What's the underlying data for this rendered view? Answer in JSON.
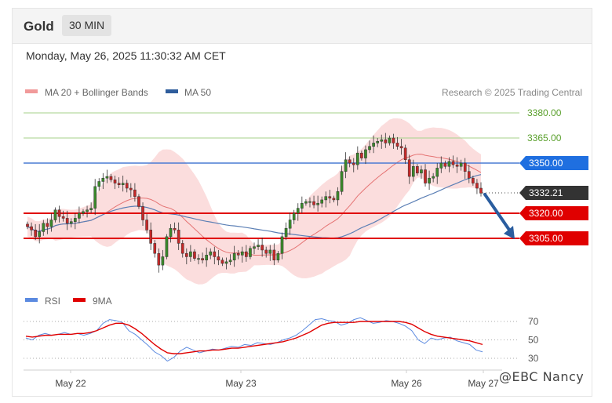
{
  "header": {
    "instrument": "Gold",
    "timeframe": "30 MIN"
  },
  "timestamp": "Monday, May 26, 2025 11:30:32 AM CET",
  "legend": {
    "ma20": "MA 20 + Bollinger Bands",
    "ma50": "MA 50",
    "credit": "Research © 2025 Trading Central"
  },
  "rsi_legend": {
    "rsi": "RSI",
    "ma9": "9MA"
  },
  "watermark": "@EBC Nancy",
  "colors": {
    "bull": "#3a8a2a",
    "bear": "#c62828",
    "band": "#f7b3b3",
    "ma20": "#e57373",
    "ma50": "#5b7fb5",
    "resistance": "#a6d28a",
    "support": "#e00000",
    "pivot": "#4a7bd4",
    "current": "#333333",
    "arrow": "#2a5d9f",
    "rsi": "#5b8ae0",
    "rsi_ma": "#e00000"
  },
  "chart_data": [
    {
      "type": "candlestick",
      "instrument": "Gold",
      "timeframe": "30 MIN",
      "x_ticks": [
        "May 22",
        "May 23",
        "May 26",
        "May 27"
      ],
      "y_levels": [
        {
          "label": "3380.00",
          "value": 3380,
          "kind": "resistance"
        },
        {
          "label": "3365.00",
          "value": 3365,
          "kind": "resistance"
        },
        {
          "label": "3350.00",
          "value": 3350,
          "kind": "pivot"
        },
        {
          "label": "3332.21",
          "value": 3332.21,
          "kind": "current"
        },
        {
          "label": "3320.00",
          "value": 3320,
          "kind": "support"
        },
        {
          "label": "3305.00",
          "value": 3305,
          "kind": "support"
        }
      ],
      "ylim": [
        3280,
        3392
      ],
      "close": [
        3312,
        3310,
        3306,
        3309,
        3314,
        3312,
        3316,
        3322,
        3318,
        3317,
        3314,
        3315,
        3317,
        3320,
        3321,
        3322,
        3323,
        3336,
        3339,
        3341,
        3342,
        3340,
        3338,
        3337,
        3338,
        3335,
        3334,
        3330,
        3324,
        3316,
        3310,
        3302,
        3296,
        3289,
        3294,
        3306,
        3311,
        3310,
        3302,
        3296,
        3294,
        3297,
        3293,
        3293,
        3292,
        3295,
        3297,
        3294,
        3292,
        3290,
        3291,
        3292,
        3296,
        3295,
        3297,
        3294,
        3299,
        3300,
        3301,
        3298,
        3296,
        3298,
        3292,
        3296,
        3306,
        3311,
        3316,
        3320,
        3323,
        3326,
        3327,
        3327,
        3325,
        3326,
        3328,
        3330,
        3329,
        3328,
        3333,
        3345,
        3352,
        3350,
        3349,
        3356,
        3353,
        3358,
        3360,
        3362,
        3363,
        3364,
        3362,
        3365,
        3362,
        3360,
        3359,
        3352,
        3342,
        3348,
        3344,
        3346,
        3338,
        3341,
        3342,
        3347,
        3350,
        3348,
        3351,
        3349,
        3348,
        3350,
        3345,
        3341,
        3338,
        3335,
        3332
      ],
      "ma20": "smoothed 20-period moving average with Bollinger Bands",
      "ma50": "smoothed 50-period moving average",
      "forecast": {
        "from": 3332.21,
        "to": 3305
      }
    },
    {
      "type": "line",
      "name": "RSI",
      "yticks": [
        30,
        50,
        70
      ],
      "ylim": [
        20,
        80
      ],
      "series": [
        {
          "name": "RSI",
          "values": [
            52,
            50,
            55,
            57,
            55,
            56,
            58,
            56,
            57,
            55,
            57,
            60,
            68,
            72,
            71,
            69,
            60,
            56,
            50,
            44,
            37,
            33,
            27,
            31,
            38,
            42,
            39,
            36,
            38,
            40,
            39,
            41,
            43,
            42,
            45,
            44,
            47,
            46,
            45,
            47,
            50,
            52,
            55,
            60,
            66,
            72,
            73,
            71,
            70,
            66,
            68,
            72,
            74,
            71,
            68,
            69,
            71,
            70,
            68,
            65,
            60,
            50,
            46,
            52,
            50,
            52,
            53,
            49,
            47,
            45,
            39,
            37
          ]
        },
        {
          "name": "9MA",
          "values": [
            54,
            53,
            54,
            55,
            55,
            56,
            56,
            56,
            57,
            57,
            58,
            60,
            63,
            66,
            68,
            68,
            66,
            62,
            57,
            51,
            45,
            40,
            36,
            35,
            35,
            36,
            37,
            38,
            38,
            39,
            39,
            40,
            41,
            41,
            42,
            43,
            44,
            45,
            46,
            47,
            48,
            50,
            52,
            55,
            58,
            62,
            66,
            68,
            69,
            69,
            69,
            69,
            70,
            70,
            70,
            70,
            70,
            70,
            70,
            69,
            67,
            63,
            59,
            56,
            54,
            53,
            52,
            51,
            50,
            49,
            47,
            45
          ]
        }
      ]
    }
  ]
}
